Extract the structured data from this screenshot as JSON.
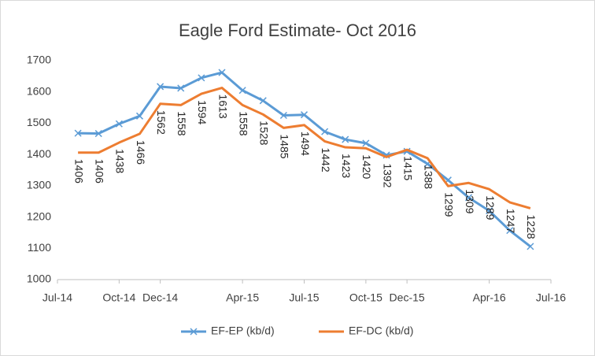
{
  "chart_data": {
    "type": "line",
    "title": "Eagle Ford Estimate- Oct 2016",
    "x": [
      1,
      2,
      3,
      4,
      5,
      6,
      7,
      8,
      9,
      10,
      11,
      12,
      13,
      14,
      15,
      16,
      17,
      18,
      19,
      20,
      21,
      22,
      23
    ],
    "xlim": [
      0,
      24
    ],
    "xticks": [
      {
        "value": 0,
        "label": "Jul-14"
      },
      {
        "value": 3,
        "label": "Oct-14"
      },
      {
        "value": 5,
        "label": "Dec-14"
      },
      {
        "value": 9,
        "label": "Apr-15"
      },
      {
        "value": 12,
        "label": "Jul-15"
      },
      {
        "value": 15,
        "label": "Oct-15"
      },
      {
        "value": 17,
        "label": "Dec-15"
      },
      {
        "value": 21,
        "label": "Apr-16"
      },
      {
        "value": 24,
        "label": "Jul-16"
      }
    ],
    "ylim": [
      1000,
      1700
    ],
    "yticks": [
      1000,
      1100,
      1200,
      1300,
      1400,
      1500,
      1600,
      1700
    ],
    "grid": false,
    "legend": "bottom",
    "series": [
      {
        "name": "EF-EP (kb/d)",
        "color": "#5b9bd5",
        "marker": "x",
        "values": [
          1468,
          1467,
          1498,
          1523,
          1617,
          1612,
          1645,
          1662,
          1605,
          1572,
          1525,
          1527,
          1473,
          1448,
          1436,
          1398,
          1410,
          1370,
          1318,
          1262,
          1220,
          1157,
          1106
        ]
      },
      {
        "name": "EF-DC (kb/d)",
        "color": "#ed7d31",
        "data_labels": true,
        "values": [
          1406,
          1406,
          1438,
          1466,
          1562,
          1558,
          1594,
          1613,
          1558,
          1528,
          1485,
          1494,
          1442,
          1423,
          1420,
          1392,
          1415,
          1388,
          1299,
          1309,
          1289,
          1247,
          1228
        ]
      }
    ]
  }
}
